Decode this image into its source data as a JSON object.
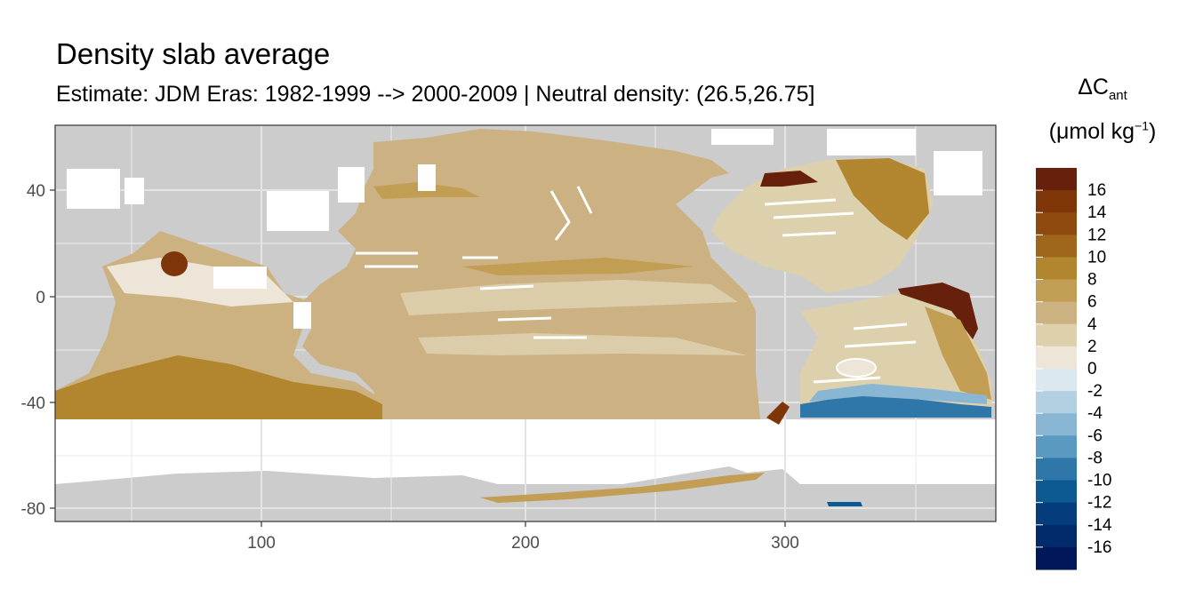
{
  "title": "Density slab average",
  "subtitle": "Estimate: JDM Eras: 1982-1999 --> 2000-2009 | Neutral density: (26.5,26.75]",
  "legend": {
    "symbol": "ΔC",
    "subscript": "ant",
    "unit_prefix": "(μmol kg",
    "unit_exponent": "−1",
    "unit_suffix": ")",
    "tick_labels": [
      "16",
      "14",
      "12",
      "10",
      "8",
      "6",
      "4",
      "2",
      "0",
      "-2",
      "-4",
      "-6",
      "-8",
      "-10",
      "-12",
      "-14",
      "-16"
    ],
    "bins": [
      {
        "color": "#67200b"
      },
      {
        "color": "#7e3609"
      },
      {
        "color": "#8f4a0f"
      },
      {
        "color": "#a0661c"
      },
      {
        "color": "#b2862e"
      },
      {
        "color": "#c29e55"
      },
      {
        "color": "#cdb281"
      },
      {
        "color": "#ddd0ad"
      },
      {
        "color": "#ece5d8"
      },
      {
        "color": "#dce8ef"
      },
      {
        "color": "#b3d0e2"
      },
      {
        "color": "#88b6d3"
      },
      {
        "color": "#5a9ac0"
      },
      {
        "color": "#2f77a8"
      },
      {
        "color": "#0d5a92"
      },
      {
        "color": "#053c7c"
      },
      {
        "color": "#022b6c"
      },
      {
        "color": "#00175a"
      }
    ]
  },
  "colors": {
    "land": "#cccccc",
    "no_data": "#ffffff",
    "grid": "#ebebeb",
    "panel_border": "#333333"
  },
  "axes": {
    "x": {
      "ticks": [
        100,
        200,
        300
      ],
      "labels": [
        "100",
        "200",
        "300"
      ],
      "range": [
        20,
        380
      ]
    },
    "y": {
      "ticks": [
        40,
        0,
        -40,
        -80
      ],
      "labels": [
        "40",
        "0",
        "-40",
        "-80"
      ],
      "range": [
        -85,
        65
      ]
    }
  }
}
